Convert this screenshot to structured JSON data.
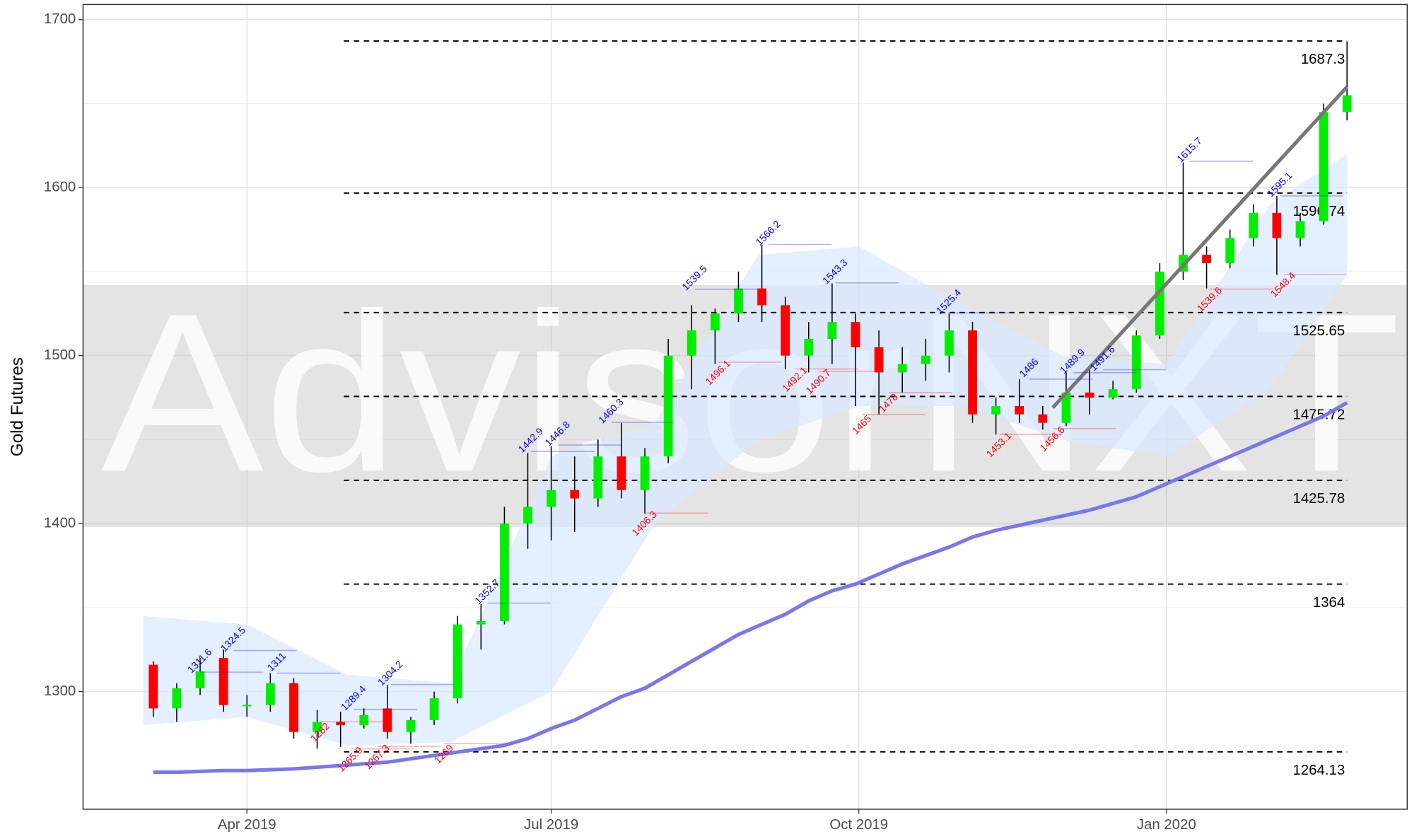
{
  "chart_data": {
    "type": "candlestick",
    "watermark": "AdvisorNXT",
    "ylabel": "Gold Futures",
    "xlim": [
      "2019-02-11",
      "2020-03-13"
    ],
    "xticks": [
      {
        "value": "2019-04-01",
        "label": "Apr 2019"
      },
      {
        "value": "2019-07-01",
        "label": "Jul 2019"
      },
      {
        "value": "2019-10-01",
        "label": "Oct 2019"
      },
      {
        "value": "2020-01-01",
        "label": "Jan 2020"
      }
    ],
    "ylim": [
      1230,
      1709
    ],
    "yticks": [
      1300,
      1400,
      1500,
      1600,
      1700
    ],
    "grid": true,
    "band": [
      1398,
      1542
    ],
    "x": [
      "2019-03-04",
      "2019-03-11",
      "2019-03-18",
      "2019-03-25",
      "2019-04-01",
      "2019-04-08",
      "2019-04-15",
      "2019-04-22",
      "2019-04-29",
      "2019-05-06",
      "2019-05-13",
      "2019-05-20",
      "2019-05-27",
      "2019-06-03",
      "2019-06-10",
      "2019-06-17",
      "2019-06-24",
      "2019-07-01",
      "2019-07-08",
      "2019-07-15",
      "2019-07-22",
      "2019-07-29",
      "2019-08-05",
      "2019-08-12",
      "2019-08-19",
      "2019-08-26",
      "2019-09-02",
      "2019-09-09",
      "2019-09-16",
      "2019-09-23",
      "2019-09-30",
      "2019-10-07",
      "2019-10-14",
      "2019-10-21",
      "2019-10-28",
      "2019-11-04",
      "2019-11-11",
      "2019-11-18",
      "2019-11-25",
      "2019-12-02",
      "2019-12-09",
      "2019-12-16",
      "2019-12-23",
      "2019-12-30",
      "2020-01-06",
      "2020-01-13",
      "2020-01-20",
      "2020-01-27",
      "2020-02-03",
      "2020-02-10",
      "2020-02-17",
      "2020-02-24"
    ],
    "open": [
      1316,
      1290,
      1302,
      1320,
      1292,
      1292,
      1305,
      1276,
      1282,
      1280,
      1290,
      1276,
      1283,
      1296,
      1340,
      1342,
      1400,
      1410,
      1420,
      1415,
      1440,
      1420,
      1440,
      1500,
      1515,
      1525,
      1540,
      1530,
      1500,
      1510,
      1520,
      1505,
      1490,
      1495,
      1500,
      1515,
      1465,
      1470,
      1465,
      1460,
      1478,
      1475,
      1480,
      1512,
      1550,
      1560,
      1555,
      1570,
      1585,
      1570,
      1580,
      1645
    ],
    "high": [
      1318,
      1305,
      1320,
      1325,
      1298,
      1311,
      1308,
      1289,
      1288,
      1290,
      1304,
      1285,
      1300,
      1345,
      1352,
      1410,
      1442,
      1446,
      1440,
      1450,
      1460,
      1445,
      1510,
      1530,
      1528,
      1550,
      1566,
      1535,
      1520,
      1543,
      1525,
      1515,
      1505,
      1510,
      1525,
      1520,
      1475,
      1486,
      1470,
      1490,
      1492,
      1485,
      1515,
      1555,
      1615,
      1565,
      1575,
      1590,
      1595,
      1585,
      1650,
      1687
    ],
    "low": [
      1285,
      1282,
      1298,
      1288,
      1285,
      1288,
      1272,
      1266,
      1267,
      1278,
      1272,
      1269,
      1280,
      1293,
      1325,
      1340,
      1385,
      1390,
      1395,
      1410,
      1415,
      1406,
      1436,
      1480,
      1495,
      1520,
      1520,
      1492,
      1490,
      1495,
      1470,
      1465,
      1478,
      1485,
      1490,
      1460,
      1453,
      1460,
      1456,
      1458,
      1465,
      1474,
      1478,
      1510,
      1545,
      1540,
      1552,
      1565,
      1548,
      1565,
      1578,
      1640
    ],
    "close": [
      1290,
      1302,
      1312,
      1292,
      1292,
      1305,
      1276,
      1282,
      1280,
      1286,
      1276,
      1283,
      1296,
      1340,
      1342,
      1400,
      1410,
      1420,
      1415,
      1440,
      1420,
      1440,
      1500,
      1515,
      1525,
      1540,
      1530,
      1500,
      1510,
      1520,
      1505,
      1490,
      1495,
      1500,
      1515,
      1465,
      1470,
      1465,
      1460,
      1478,
      1475,
      1480,
      1512,
      1550,
      1560,
      1555,
      1570,
      1585,
      1570,
      1580,
      1645,
      1655
    ],
    "up_color": "#00ee00",
    "down_color": "#ff0000",
    "ma": {
      "color": "#7777ee",
      "values": [
        1252,
        1252,
        1252.5,
        1253,
        1253,
        1253.5,
        1254,
        1255,
        1256,
        1257,
        1258,
        1260,
        1262,
        1264,
        1266,
        1268,
        1272,
        1278,
        1283,
        1290,
        1297,
        1302,
        1310,
        1318,
        1326,
        1334,
        1340,
        1346,
        1354,
        1360,
        1364,
        1370,
        1376,
        1381,
        1386,
        1392,
        1396,
        1399,
        1402,
        1405,
        1408,
        1412,
        1416,
        1422,
        1428,
        1434,
        1440,
        1446,
        1452,
        1458,
        1464,
        1472
      ]
    },
    "cloud": {
      "color": "#d8e8ff",
      "x": [
        "2019-03-01",
        "2019-04-01",
        "2019-05-01",
        "2019-06-01",
        "2019-07-01",
        "2019-08-01",
        "2019-09-01",
        "2019-10-01",
        "2019-11-01",
        "2019-12-01",
        "2020-01-01",
        "2020-02-01",
        "2020-02-24"
      ],
      "upper": [
        1345,
        1340,
        1310,
        1305,
        1440,
        1460,
        1560,
        1565,
        1530,
        1500,
        1495,
        1590,
        1620
      ],
      "lower": [
        1280,
        1285,
        1268,
        1270,
        1300,
        1400,
        1450,
        1470,
        1470,
        1450,
        1440,
        1480,
        1548
      ]
    },
    "levels": {
      "start": "2019-04-30",
      "end": "2020-02-24",
      "values": [
        1687.3,
        1596.74,
        1525.65,
        1475.72,
        1425.78,
        1364,
        1264.13
      ]
    },
    "peaks": {
      "color": "#0000ff",
      "x": [
        "2019-03-18",
        "2019-03-28",
        "2019-04-10",
        "2019-05-03",
        "2019-05-14",
        "2019-06-12",
        "2019-06-25",
        "2019-07-03",
        "2019-07-19",
        "2019-08-13",
        "2019-09-04",
        "2019-09-24",
        "2019-10-28",
        "2019-11-21",
        "2019-12-04",
        "2019-12-13",
        "2020-01-08",
        "2020-02-04"
      ],
      "values": [
        1311.6,
        1324.5,
        1311,
        1289.4,
        1304.2,
        1352.7,
        1442.9,
        1446.8,
        1460.3,
        1539.5,
        1566.2,
        1543.3,
        1525.4,
        1486,
        1489.9,
        1491.6,
        1615.7,
        1595.1
      ]
    },
    "troughs": {
      "color": "#ff0000",
      "x": [
        "2019-04-23",
        "2019-05-02",
        "2019-05-10",
        "2019-05-30",
        "2019-07-29",
        "2019-08-20",
        "2019-09-12",
        "2019-09-19",
        "2019-10-02",
        "2019-10-10",
        "2019-11-12",
        "2019-11-28",
        "2020-01-14",
        "2020-02-05"
      ],
      "values": [
        1282,
        1265.9,
        1267.3,
        1269,
        1406.3,
        1496.1,
        1492.1,
        1490.7,
        1465,
        1478,
        1453.1,
        1456.6,
        1539.6,
        1548.4
      ]
    },
    "trendline": {
      "color": "#777777",
      "x": [
        "2019-11-28",
        "2020-02-24"
      ],
      "values": [
        1469,
        1660
      ]
    }
  }
}
